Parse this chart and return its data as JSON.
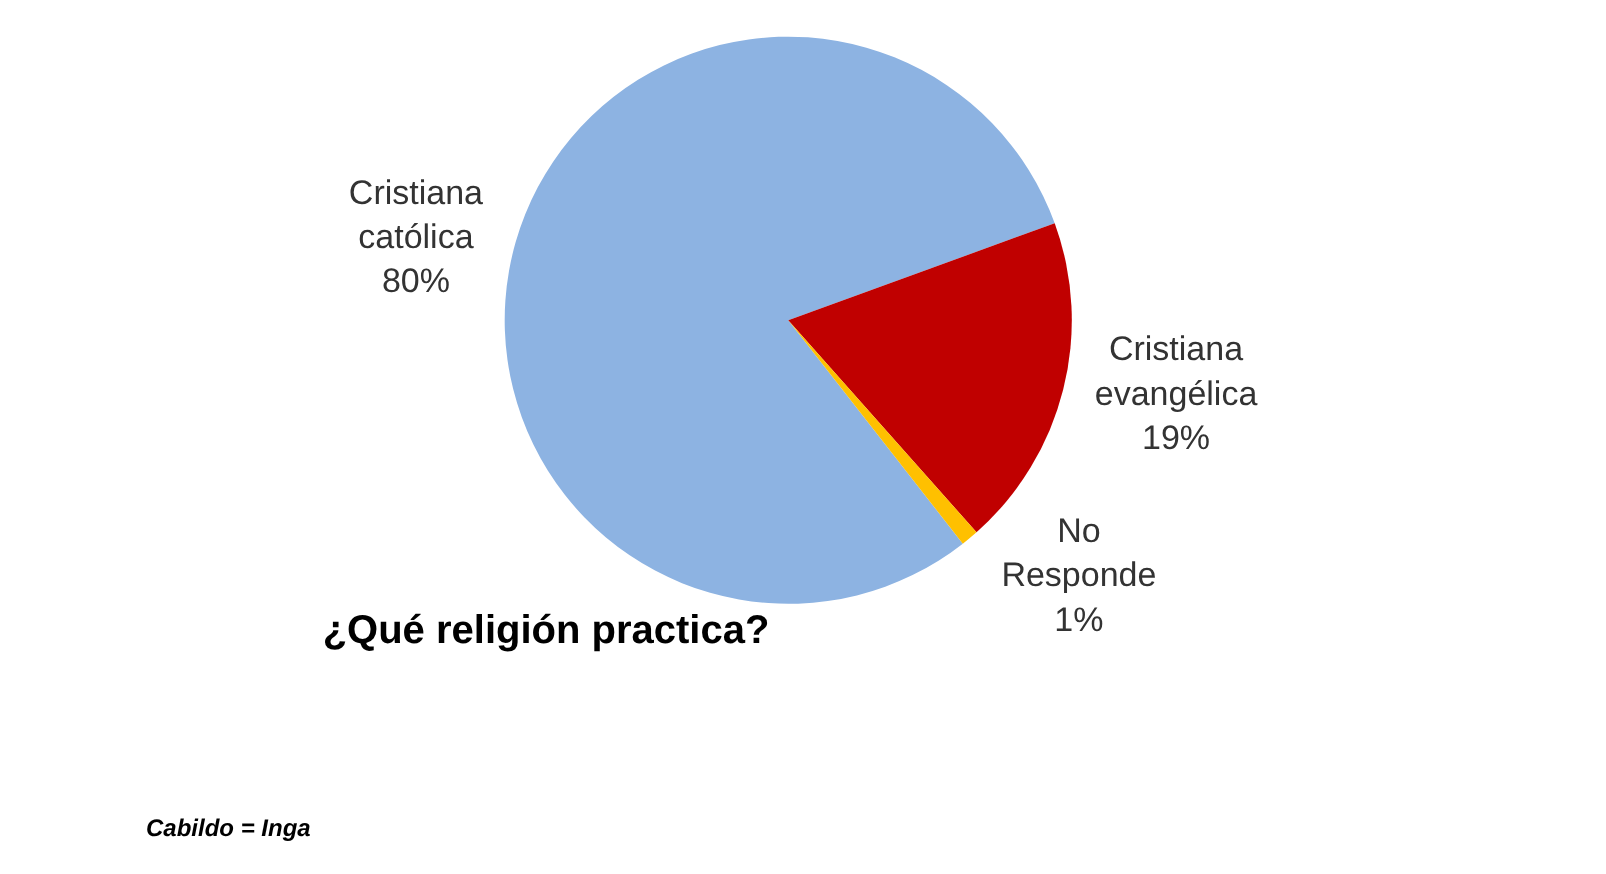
{
  "chart_data": {
    "type": "pie",
    "title": "¿Qué religión practica?",
    "categories": [
      "Cristiana católica",
      "Cristiana evangélica",
      "No Responde"
    ],
    "values": [
      80,
      19,
      1
    ],
    "value_labels": [
      "80%",
      "19%",
      "1%"
    ],
    "colors": [
      "#8db3e2",
      "#c00000",
      "#ffc000"
    ],
    "legend": false,
    "annotations": [
      "Cabildo = Inga"
    ]
  }
}
